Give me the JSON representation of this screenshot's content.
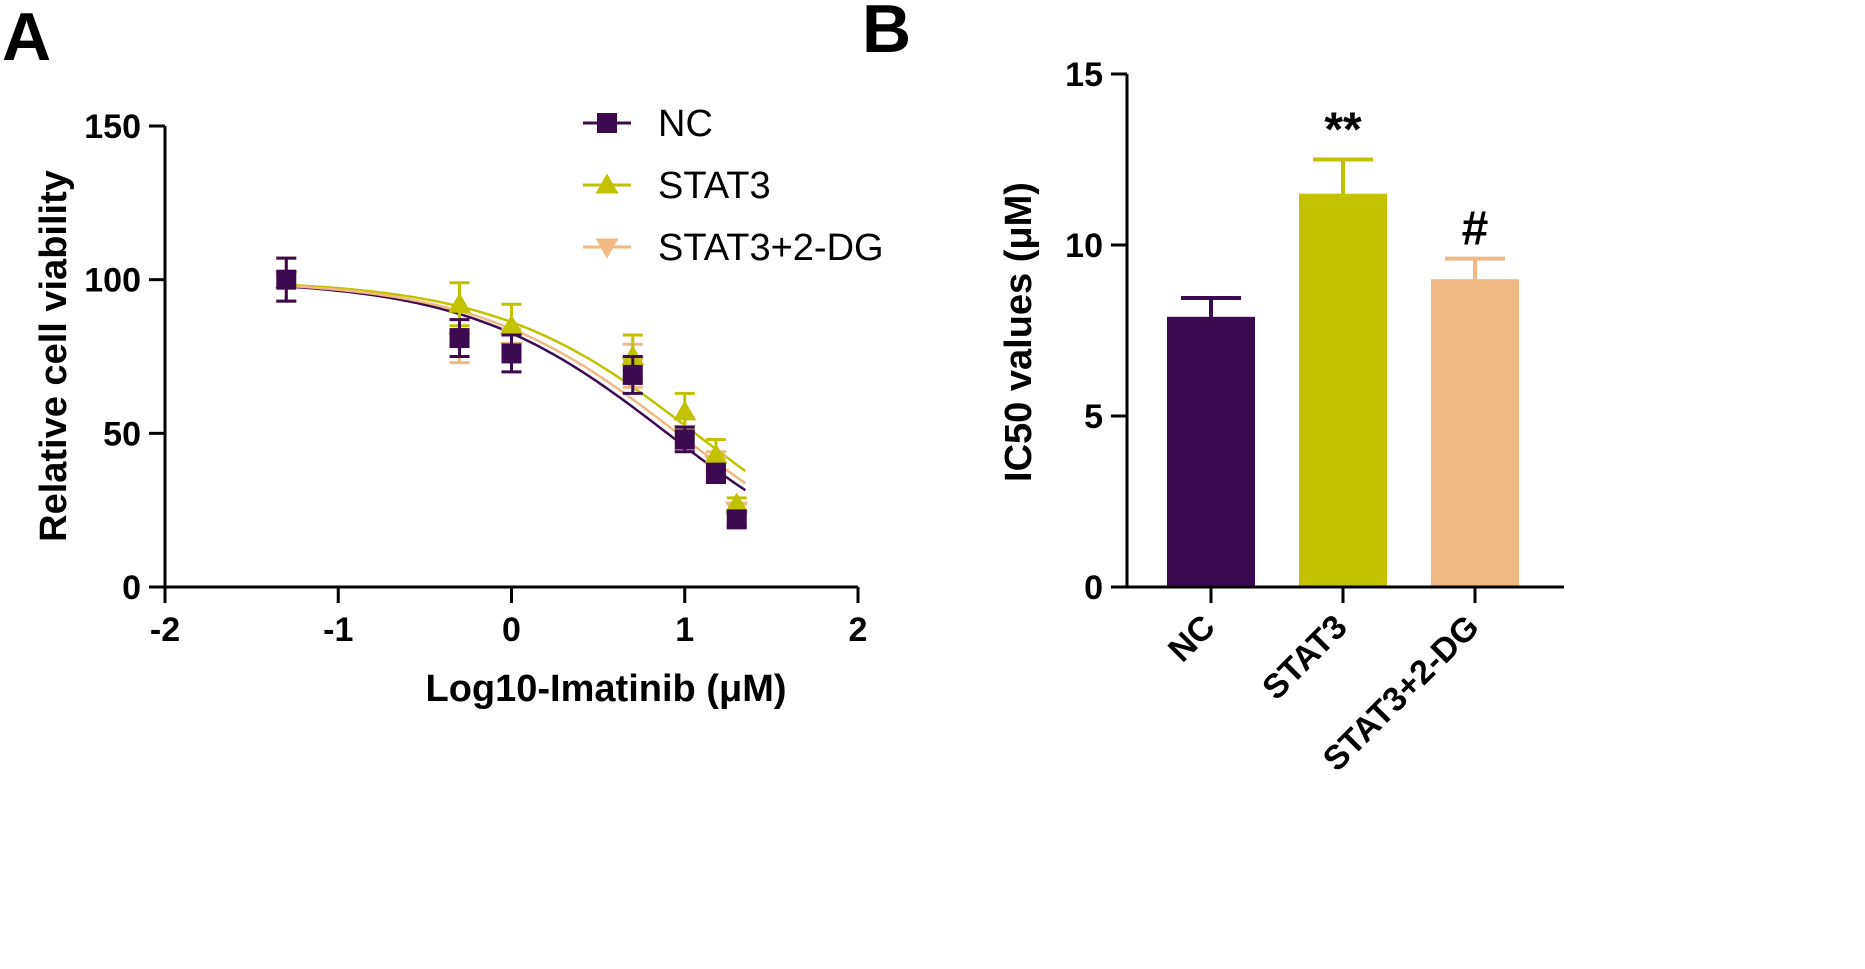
{
  "chart_data": [
    {
      "panel_label": "A",
      "type": "scatter",
      "xlabel": "Log10-Imatinib (μM)",
      "ylabel": "Relative cell viability",
      "xlim": [
        -2,
        2
      ],
      "ylim": [
        0,
        150
      ],
      "xticks": [
        -2,
        -1,
        0,
        1,
        2
      ],
      "xtick_labels": [
        "-2",
        "-1",
        "0",
        "1",
        "2"
      ],
      "yticks": [
        0,
        50,
        100,
        150
      ],
      "ytick_labels": [
        "0",
        "50",
        "100",
        "150"
      ],
      "legend_position": "top-right",
      "series": [
        {
          "name": "NC",
          "color": "#3d0a52",
          "marker": "square",
          "x": [
            -1.3,
            -0.3,
            0,
            0.7,
            1,
            1.18,
            1.3
          ],
          "y": [
            100,
            81,
            76,
            69,
            48,
            37,
            22
          ],
          "err": [
            7,
            6,
            6,
            6,
            4,
            3,
            2
          ],
          "fit": {
            "top": 100,
            "bottom": 0,
            "logIC50": 0.9,
            "hill": 0.75
          }
        },
        {
          "name": "STAT3",
          "color": "#c2c200",
          "marker": "triangle-up",
          "x": [
            -1.3,
            -0.3,
            0,
            0.7,
            1,
            1.18,
            1.3
          ],
          "y": [
            100,
            92,
            85,
            75,
            57,
            43,
            27
          ],
          "err": [
            7,
            7,
            7,
            7,
            6,
            5,
            2
          ],
          "fit": {
            "top": 100,
            "bottom": 0,
            "logIC50": 1.06,
            "hill": 0.75
          }
        },
        {
          "name": "STAT3+2-DG",
          "color": "#f0b882",
          "marker": "triangle-down",
          "x": [
            -1.3,
            -0.3,
            0,
            0.7,
            1,
            1.18,
            1.3
          ],
          "y": [
            100,
            80,
            77,
            72,
            50,
            40,
            25
          ],
          "err": [
            7,
            7,
            7,
            7,
            5,
            4,
            2
          ],
          "fit": {
            "top": 100,
            "bottom": 0,
            "logIC50": 0.96,
            "hill": 0.75
          }
        }
      ]
    },
    {
      "panel_label": "B",
      "type": "bar",
      "ylabel": "IC50 values (μM)",
      "xlabel": "",
      "ylim": [
        0,
        15
      ],
      "yticks": [
        0,
        5,
        10,
        15
      ],
      "ytick_labels": [
        "0",
        "5",
        "10",
        "15"
      ],
      "categories": [
        "NC",
        "STAT3",
        "STAT3+2-DG"
      ],
      "values": [
        7.9,
        11.5,
        9.0
      ],
      "errors": [
        0.55,
        1.0,
        0.6
      ],
      "colors": [
        "#3d0a52",
        "#c2c200",
        "#f0b882"
      ],
      "annotations": [
        "",
        "**",
        "#"
      ]
    }
  ]
}
